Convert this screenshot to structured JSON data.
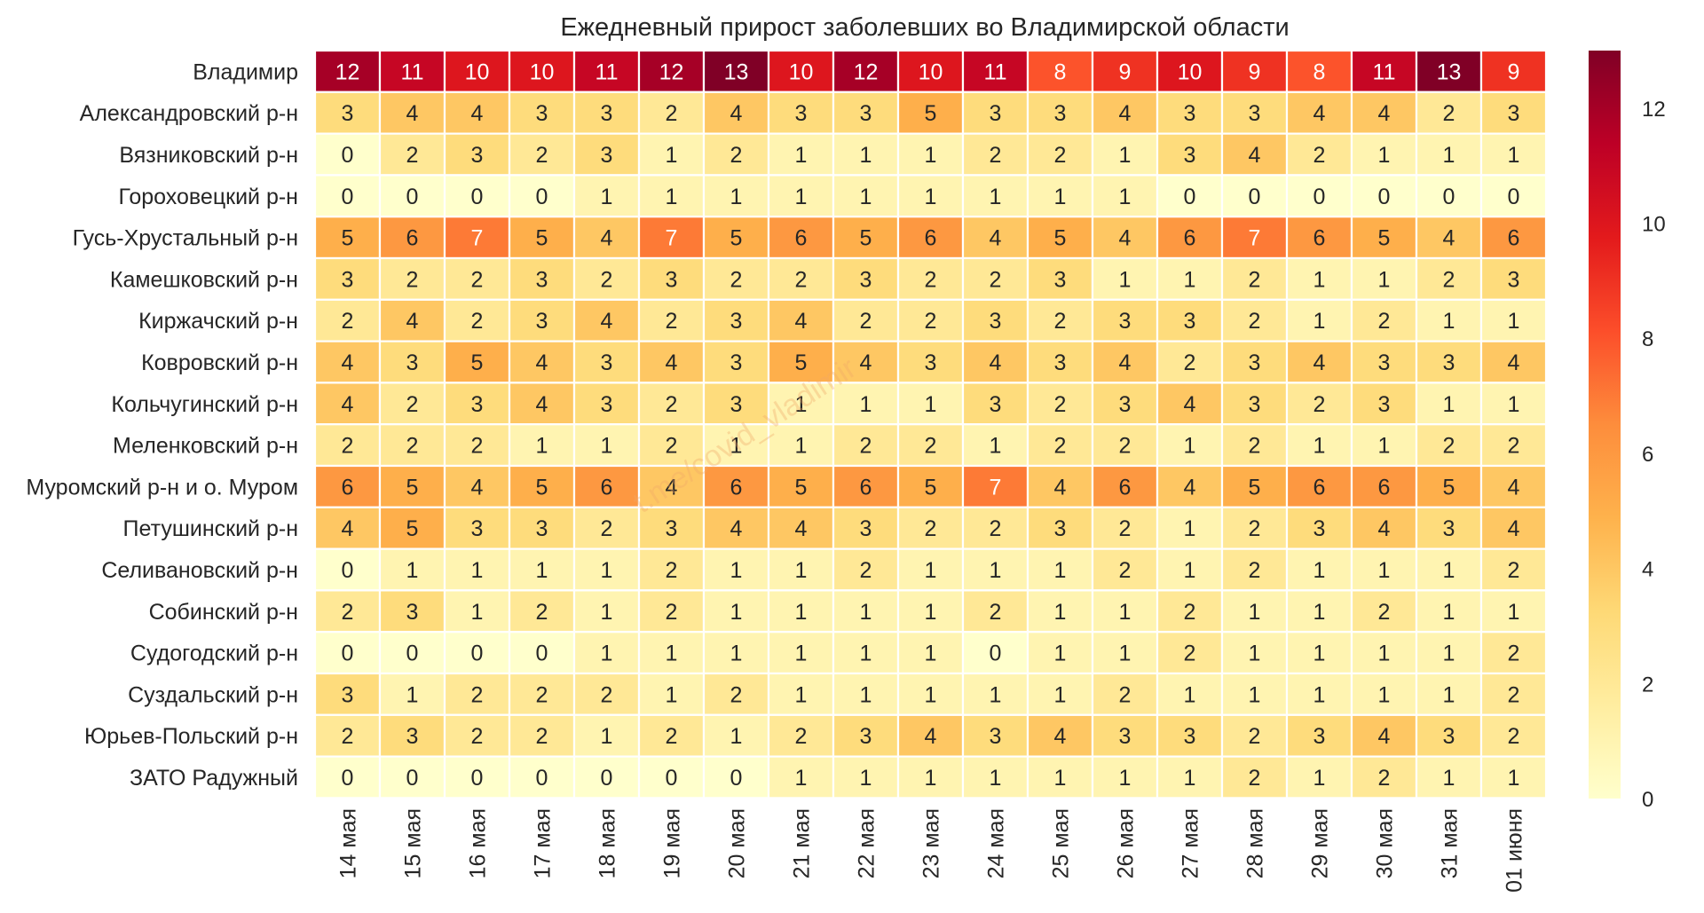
{
  "chart_data": {
    "type": "heatmap",
    "title": "Ежедневный прирост заболевших во Владимирской области",
    "watermark": "t.me/covid_vladimir",
    "columns": [
      "14 мая",
      "15 мая",
      "16 мая",
      "17 мая",
      "18 мая",
      "19 мая",
      "20 мая",
      "21 мая",
      "22 мая",
      "23 мая",
      "24 мая",
      "25 мая",
      "26 мая",
      "27 мая",
      "28 мая",
      "29 мая",
      "30 мая",
      "31 мая",
      "01 июня"
    ],
    "rows": [
      {
        "name": "Владимир",
        "values": [
          12,
          11,
          10,
          10,
          11,
          12,
          13,
          10,
          12,
          10,
          11,
          8,
          9,
          10,
          9,
          8,
          11,
          13,
          9
        ]
      },
      {
        "name": "Александровский р-н",
        "values": [
          3,
          4,
          4,
          3,
          3,
          2,
          4,
          3,
          3,
          5,
          3,
          3,
          4,
          3,
          3,
          4,
          4,
          2,
          3
        ]
      },
      {
        "name": "Вязниковский р-н",
        "values": [
          0,
          2,
          3,
          2,
          3,
          1,
          2,
          1,
          1,
          1,
          2,
          2,
          1,
          3,
          4,
          2,
          1,
          1,
          1
        ]
      },
      {
        "name": "Гороховецкий р-н",
        "values": [
          0,
          0,
          0,
          0,
          1,
          1,
          1,
          1,
          1,
          1,
          1,
          1,
          1,
          0,
          0,
          0,
          0,
          0,
          0
        ]
      },
      {
        "name": "Гусь-Хрустальный р-н",
        "values": [
          5,
          6,
          7,
          5,
          4,
          7,
          5,
          6,
          5,
          6,
          4,
          5,
          4,
          6,
          7,
          6,
          5,
          4,
          6
        ]
      },
      {
        "name": "Камешковский р-н",
        "values": [
          3,
          2,
          2,
          3,
          2,
          3,
          2,
          2,
          3,
          2,
          2,
          3,
          1,
          1,
          2,
          1,
          1,
          2,
          3
        ]
      },
      {
        "name": "Киржачский р-н",
        "values": [
          2,
          4,
          2,
          3,
          4,
          2,
          3,
          4,
          2,
          2,
          3,
          2,
          3,
          3,
          2,
          1,
          2,
          1,
          1
        ]
      },
      {
        "name": "Ковровский р-н",
        "values": [
          4,
          3,
          5,
          4,
          3,
          4,
          3,
          5,
          4,
          3,
          4,
          3,
          4,
          2,
          3,
          4,
          3,
          3,
          4
        ]
      },
      {
        "name": "Кольчугинский р-н",
        "values": [
          4,
          2,
          3,
          4,
          3,
          2,
          3,
          1,
          1,
          1,
          3,
          2,
          3,
          4,
          3,
          2,
          3,
          1,
          1
        ]
      },
      {
        "name": "Меленковский р-н",
        "values": [
          2,
          2,
          2,
          1,
          1,
          2,
          1,
          1,
          2,
          2,
          1,
          2,
          2,
          1,
          2,
          1,
          1,
          2,
          2
        ]
      },
      {
        "name": "Муромский р-н и о. Муром",
        "values": [
          6,
          5,
          4,
          5,
          6,
          4,
          6,
          5,
          6,
          5,
          7,
          4,
          6,
          4,
          5,
          6,
          6,
          5,
          4
        ]
      },
      {
        "name": "Петушинский р-н",
        "values": [
          4,
          5,
          3,
          3,
          2,
          3,
          4,
          4,
          3,
          2,
          2,
          3,
          2,
          1,
          2,
          3,
          4,
          3,
          4
        ]
      },
      {
        "name": "Селивановский р-н",
        "values": [
          0,
          1,
          1,
          1,
          1,
          2,
          1,
          1,
          2,
          1,
          1,
          1,
          2,
          1,
          2,
          1,
          1,
          1,
          2
        ]
      },
      {
        "name": "Собинский р-н",
        "values": [
          2,
          3,
          1,
          2,
          1,
          2,
          1,
          1,
          1,
          1,
          2,
          1,
          1,
          2,
          1,
          1,
          2,
          1,
          1
        ]
      },
      {
        "name": "Судогодский р-н",
        "values": [
          0,
          0,
          0,
          0,
          1,
          1,
          1,
          1,
          1,
          1,
          0,
          1,
          1,
          2,
          1,
          1,
          1,
          1,
          2
        ]
      },
      {
        "name": "Суздальский р-н",
        "values": [
          3,
          1,
          2,
          2,
          2,
          1,
          2,
          1,
          1,
          1,
          1,
          1,
          2,
          1,
          1,
          1,
          1,
          1,
          2
        ]
      },
      {
        "name": "Юрьев-Польский р-н",
        "values": [
          2,
          3,
          2,
          2,
          1,
          2,
          1,
          2,
          3,
          4,
          3,
          4,
          3,
          3,
          2,
          3,
          4,
          3,
          2
        ]
      },
      {
        "name": "ЗАТО Радужный",
        "values": [
          0,
          0,
          0,
          0,
          0,
          0,
          0,
          1,
          1,
          1,
          1,
          1,
          1,
          1,
          2,
          1,
          2,
          1,
          1
        ]
      }
    ],
    "colorbar": {
      "min": 0,
      "max": 13,
      "ticks": [
        0,
        2,
        4,
        6,
        8,
        10,
        12
      ],
      "colormap": "YlOrRd",
      "stops": [
        "#ffffcc",
        "#ffeda0",
        "#fed976",
        "#feb24c",
        "#fd8d3c",
        "#fc4e2a",
        "#e31a1c",
        "#bd0026",
        "#800026"
      ]
    },
    "cell_text_dark": "#262626",
    "cell_text_light": "#ffffff"
  }
}
